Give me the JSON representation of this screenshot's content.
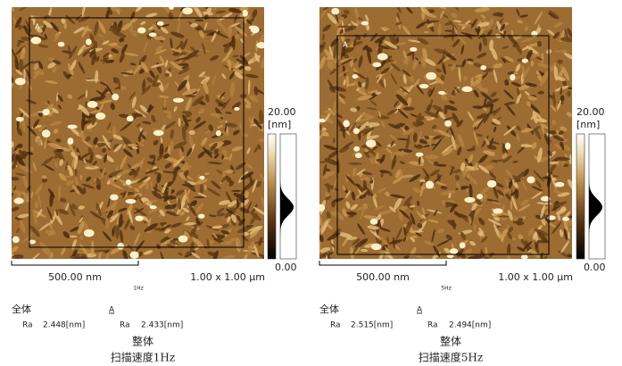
{
  "panels": [
    {
      "region_label": "A",
      "colorbar_max": "20.00",
      "colorbar_unit": "[nm]",
      "colorbar_min": "0.00",
      "scale_bar": "500.00 nm",
      "scan_size": "1.00 x 1.00 µm",
      "rate_tag": "1Hz",
      "whole_label": "全体",
      "whole_ra_label": "Ra",
      "whole_ra": "2.448[nm]",
      "region_title": "A",
      "region_ra_label": "Ra",
      "region_ra": "2.433[nm]",
      "caption_title": "整体",
      "caption_rate": "扫描速度1Hz"
    },
    {
      "region_label": "A",
      "colorbar_max": "20.00",
      "colorbar_unit": "[nm]",
      "colorbar_min": "0.00",
      "scale_bar": "500.00 nm",
      "scan_size": "1.00 x 1.00 µm",
      "rate_tag": "5Hz",
      "whole_label": "全体",
      "whole_ra_label": "Ra",
      "whole_ra": "2.515[nm]",
      "region_title": "A",
      "region_ra_label": "Ra",
      "region_ra": "2.494[nm]",
      "caption_title": "整体",
      "caption_rate": "扫描速度5Hz"
    }
  ]
}
